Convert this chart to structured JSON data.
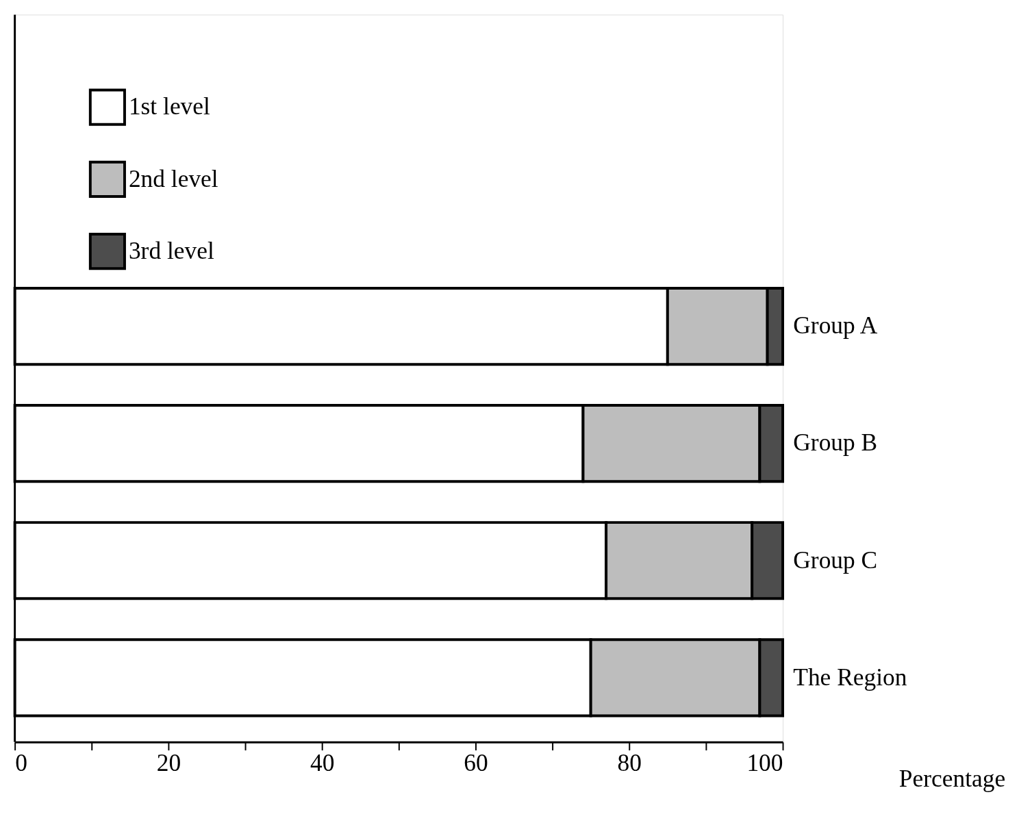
{
  "chart_data": {
    "type": "bar",
    "orientation": "horizontal",
    "stacked": true,
    "categories": [
      "Group A",
      "Group B",
      "Group C",
      "The Region"
    ],
    "series": [
      {
        "name": "1st level",
        "color": "#ffffff",
        "values": [
          85,
          74,
          77,
          75
        ]
      },
      {
        "name": "2nd level",
        "color": "#bdbdbd",
        "values": [
          13,
          23,
          19,
          22
        ]
      },
      {
        "name": "3rd level",
        "color": "#4d4d4d",
        "values": [
          2,
          3,
          4,
          3
        ]
      }
    ],
    "xlabel": "Percentage",
    "xlim": [
      0,
      100
    ],
    "xticks": [
      0,
      {
        "value": 10,
        "label": null
      },
      20,
      {
        "value": 30,
        "label": null
      },
      40,
      {
        "value": 50,
        "label": null
      },
      60,
      {
        "value": 70,
        "label": null
      },
      80,
      {
        "value": 90,
        "label": null
      },
      100
    ],
    "legend": "top left",
    "grid": false
  }
}
